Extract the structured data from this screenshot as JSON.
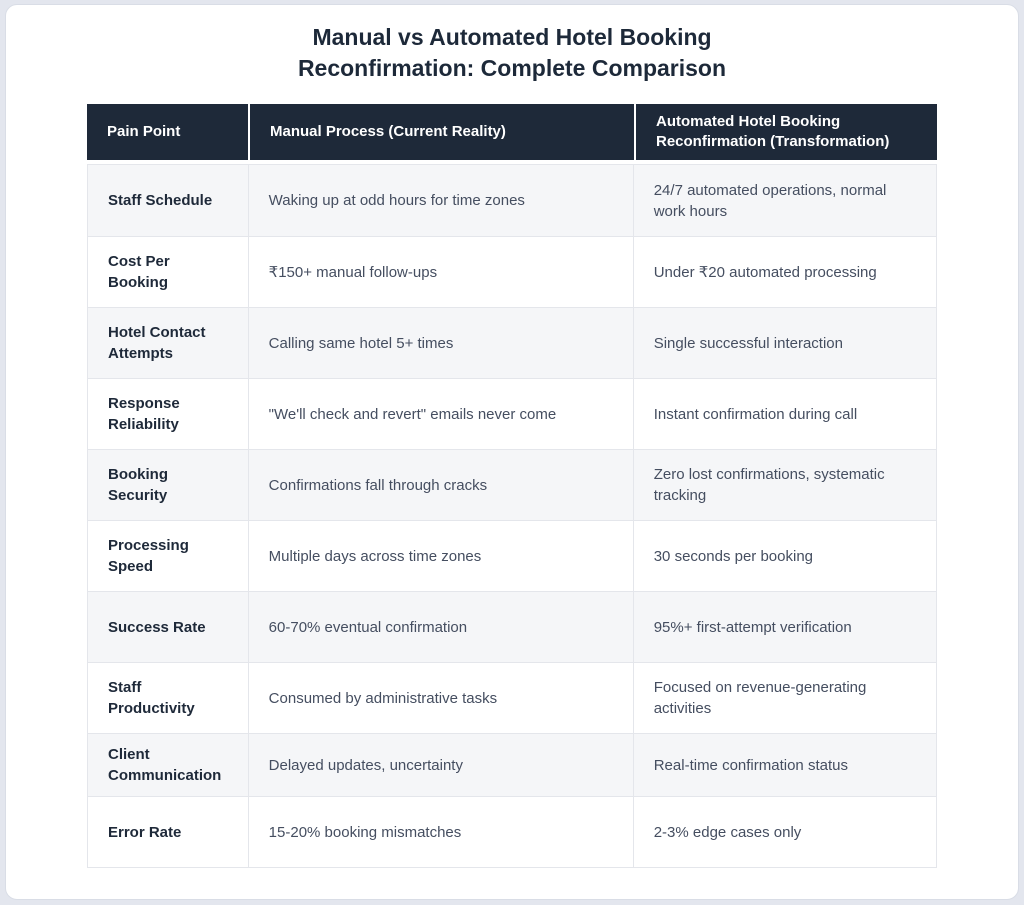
{
  "chart_data": {
    "type": "table",
    "title": "Manual vs Automated Hotel Booking Reconfirmation: Complete Comparison",
    "title_lines": [
      "Manual vs Automated Hotel Booking",
      "Reconfirmation: Complete Comparison"
    ],
    "columns": [
      "Pain Point",
      "Manual Process (Current Reality)",
      "Automated Hotel Booking Reconfirmation (Transformation)"
    ],
    "rows": [
      [
        "Staff Schedule",
        "Waking up at odd hours for time zones",
        "24/7 automated operations, normal work hours"
      ],
      [
        "Cost Per Booking",
        "₹150+ manual follow-ups",
        "Under ₹20 automated processing"
      ],
      [
        "Hotel Contact Attempts",
        "Calling same hotel 5+ times",
        "Single successful interaction"
      ],
      [
        "Response Reliability",
        "\"We'll check and revert\" emails never come",
        "Instant confirmation during call"
      ],
      [
        "Booking Security",
        "Confirmations fall through cracks",
        "Zero lost confirmations, systematic tracking"
      ],
      [
        "Processing Speed",
        "Multiple days across time zones",
        "30 seconds per booking"
      ],
      [
        "Success Rate",
        "60-70% eventual confirmation",
        "95%+ first-attempt verification"
      ],
      [
        "Staff Productivity",
        "Consumed by administrative tasks",
        "Focused on revenue-generating activities"
      ],
      [
        "Client Communication",
        "Delayed updates, uncertainty",
        "Real-time confirmation status"
      ],
      [
        "Error Rate",
        "15-20% booking mismatches",
        "2-3% edge cases only"
      ]
    ],
    "layout": {
      "legend": "none",
      "grid": "table-borders",
      "row_striping": true
    }
  },
  "colors": {
    "header_bg": "#1e2939",
    "header_text": "#ffffff",
    "row_stripe": "#f5f6f8",
    "row_plain": "#ffffff",
    "label_text": "#1e2939",
    "cell_text": "#454e60",
    "border": "#e4e6eb",
    "title_text": "#1d2939",
    "page_bg": "#e3e6ee",
    "card_bg": "#ffffff"
  }
}
